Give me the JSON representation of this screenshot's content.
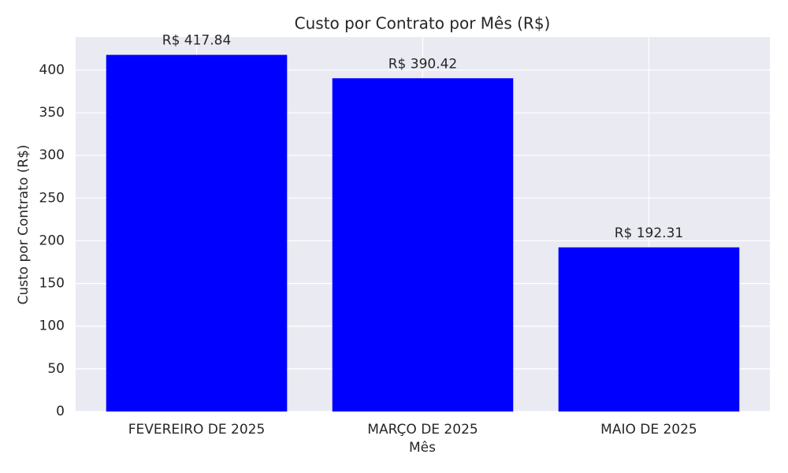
{
  "chart_data": {
    "type": "bar",
    "title": "Custo por Contrato por Mês (R$)",
    "x_label": "Mês",
    "y_label": "Custo por Contrato (R$)",
    "categories": [
      "FEVEREIRO DE 2025",
      "MARÇO DE 2025",
      "MAIO DE 2025"
    ],
    "values": [
      417.84,
      390.42,
      192.31
    ],
    "value_labels": [
      "R$ 417.84",
      "R$ 390.42",
      "R$ 192.31"
    ],
    "color": "#0000ff",
    "ylim": [
      0,
      438.7
    ],
    "yticks": [
      0,
      50,
      100,
      150,
      200,
      250,
      300,
      350,
      400
    ],
    "grid": true
  }
}
